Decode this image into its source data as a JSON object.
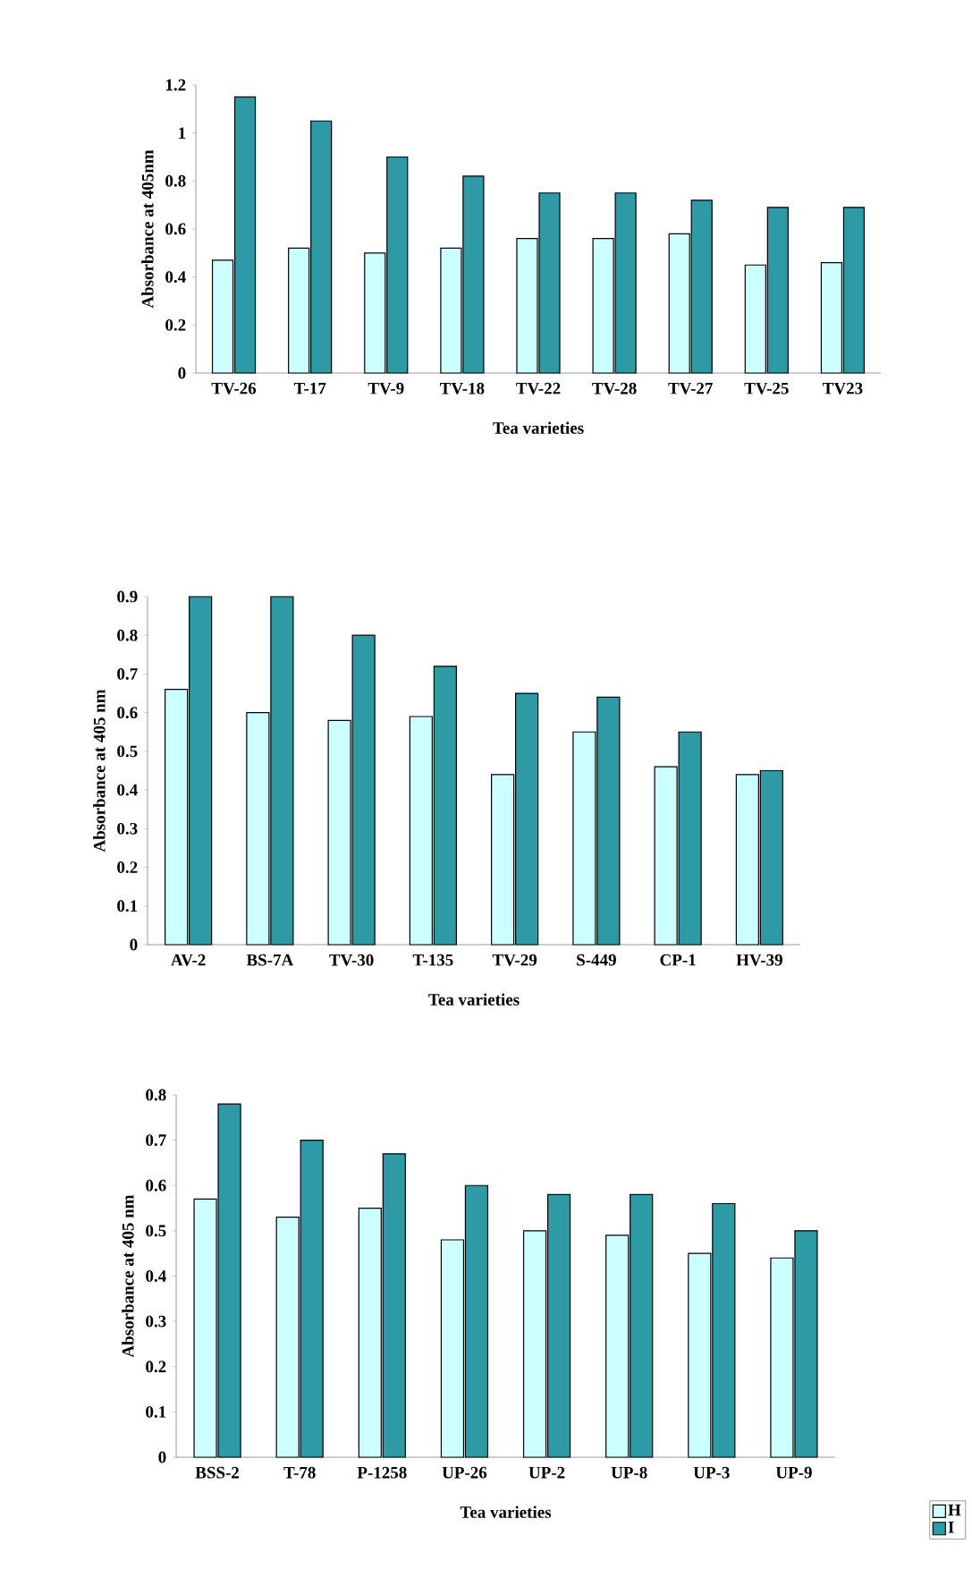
{
  "chart_data": [
    {
      "type": "bar",
      "ylabel": "Absorbance at 405nm",
      "xlabel": "Tea varieties",
      "categories": [
        "TV-26",
        "T-17",
        "TV-9",
        "TV-18",
        "TV-22",
        "TV-28",
        "TV-27",
        "TV-25",
        "TV23"
      ],
      "series": [
        {
          "color": "#ccffff",
          "values": [
            0.47,
            0.52,
            0.5,
            0.52,
            0.56,
            0.56,
            0.58,
            0.45,
            0.46
          ]
        },
        {
          "color": "#2e9aa6",
          "values": [
            1.15,
            1.05,
            0.9,
            0.82,
            0.75,
            0.75,
            0.72,
            0.69,
            0.69
          ]
        }
      ],
      "ylim": [
        0,
        1.2
      ],
      "yticks": [
        0,
        0.2,
        0.4,
        0.6,
        0.8,
        1,
        1.2
      ]
    },
    {
      "type": "bar",
      "ylabel": "Absorbance at 405 nm",
      "xlabel": "Tea varieties",
      "categories": [
        "AV-2",
        "BS-7A",
        "TV-30",
        "T-135",
        "TV-29",
        "S-449",
        "CP-1",
        "HV-39"
      ],
      "series": [
        {
          "color": "#ccffff",
          "values": [
            0.66,
            0.6,
            0.58,
            0.59,
            0.44,
            0.55,
            0.46,
            0.44
          ]
        },
        {
          "color": "#2e9aa6",
          "values": [
            0.9,
            0.9,
            0.8,
            0.72,
            0.65,
            0.64,
            0.55,
            0.45
          ]
        }
      ],
      "ylim": [
        0,
        0.9
      ],
      "yticks": [
        0,
        0.1,
        0.2,
        0.3,
        0.4,
        0.5,
        0.6,
        0.7,
        0.8,
        0.9
      ]
    },
    {
      "type": "bar",
      "ylabel": "Absorbance at 405 nm",
      "xlabel": "Tea varieties",
      "categories": [
        "BSS-2",
        "T-78",
        "P-1258",
        "UP-26",
        "UP-2",
        "UP-8",
        "UP-3",
        "UP-9"
      ],
      "series": [
        {
          "name": "H",
          "color": "#ccffff",
          "values": [
            0.57,
            0.53,
            0.55,
            0.48,
            0.5,
            0.49,
            0.45,
            0.44
          ]
        },
        {
          "name": "I",
          "color": "#2e9aa6",
          "values": [
            0.78,
            0.7,
            0.67,
            0.6,
            0.58,
            0.58,
            0.56,
            0.5
          ]
        }
      ],
      "ylim": [
        0,
        0.8
      ],
      "yticks": [
        0,
        0.1,
        0.2,
        0.3,
        0.4,
        0.5,
        0.6,
        0.7,
        0.8
      ],
      "legend": "bottom right"
    }
  ]
}
